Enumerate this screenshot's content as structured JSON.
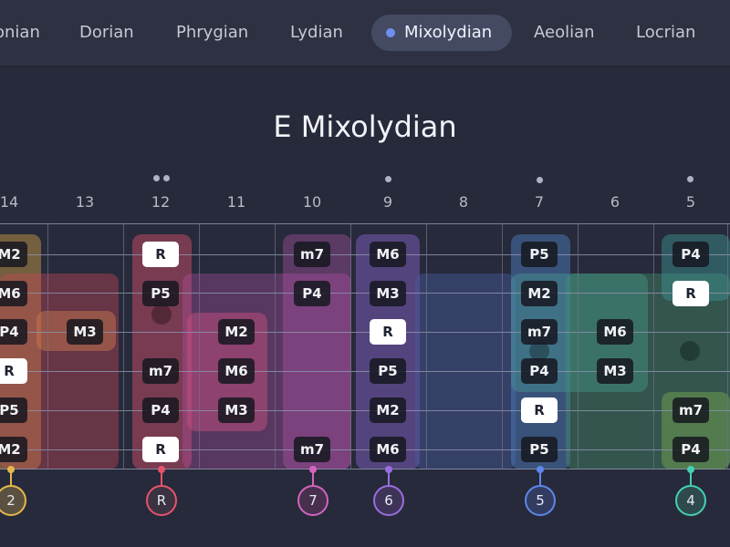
{
  "tabs": [
    {
      "label": "onian"
    },
    {
      "label": "Dorian"
    },
    {
      "label": "Phrygian"
    },
    {
      "label": "Lydian"
    },
    {
      "label": "Mixolydian",
      "active": true
    },
    {
      "label": "Aeolian"
    },
    {
      "label": "Locrian"
    }
  ],
  "title": "E Mixolydian",
  "frets": [
    "14",
    "13",
    "12",
    "11",
    "10",
    "9",
    "8",
    "7",
    "6",
    "5"
  ],
  "notes": {
    "s1": [
      "M2",
      "R",
      "m7",
      "M6",
      "P5",
      "P4"
    ],
    "s2": [
      "M6",
      "P5",
      "P4",
      "M3",
      "M2",
      "R"
    ],
    "s3": [
      "P4",
      "M3",
      "M2",
      "R",
      "m7",
      "M6"
    ],
    "s4": [
      "R",
      "m7",
      "M6",
      "P5",
      "P4",
      "M3"
    ],
    "s5": [
      "P5",
      "P4",
      "M3",
      "M2",
      "R",
      "m7"
    ],
    "s6": [
      "M2",
      "R",
      "m7",
      "M6",
      "P5",
      "P4"
    ]
  },
  "positions": [
    "2",
    "R",
    "7",
    "6",
    "5",
    "4"
  ],
  "colors": {
    "active_dot": "#6f8ff2",
    "pos_2": "#e6b84a",
    "pos_R": "#e8536b",
    "pos_7": "#d265c0",
    "pos_6": "#9a6ee0",
    "pos_5": "#5f86ee",
    "pos_4": "#45cfb4"
  }
}
